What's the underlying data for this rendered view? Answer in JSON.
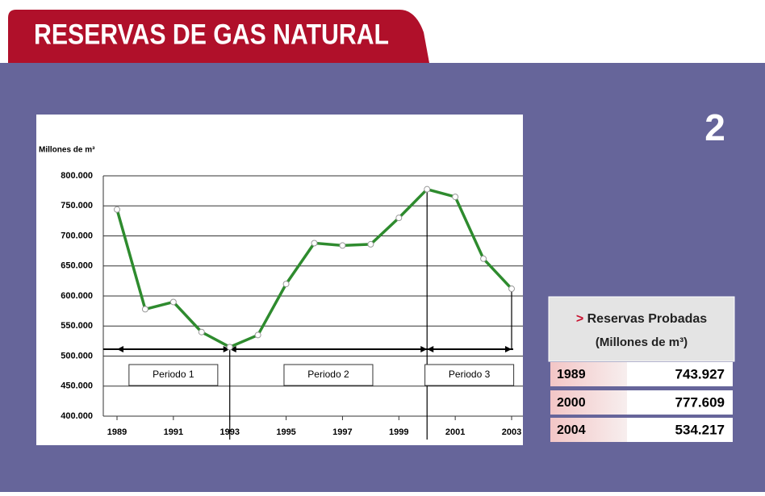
{
  "header": {
    "title": "RESERVAS DE GAS NATURAL"
  },
  "badge": "2",
  "chart_data": {
    "type": "line",
    "ylabel": "Millones de m³",
    "x": [
      1989,
      1990,
      1991,
      1992,
      1993,
      1994,
      1995,
      1996,
      1997,
      1998,
      1999,
      2000,
      2001,
      2002,
      2003
    ],
    "series": [
      {
        "name": "Reservas",
        "color": "#2e8b2e",
        "values": [
          743927,
          578000,
          590000,
          540000,
          515000,
          535000,
          620000,
          688000,
          684000,
          686000,
          730000,
          777609,
          765000,
          662000,
          612000
        ]
      }
    ],
    "xlim": [
      1989,
      2003
    ],
    "xticks": [
      1989,
      1991,
      1993,
      1995,
      1997,
      1999,
      2001,
      2003
    ],
    "ylim": [
      400000,
      800000
    ],
    "yticks": [
      {
        "value": 400000,
        "label": "400.000"
      },
      {
        "value": 450000,
        "label": "450.000"
      },
      {
        "value": 500000,
        "label": "500.000"
      },
      {
        "value": 550000,
        "label": "550.000"
      },
      {
        "value": 600000,
        "label": "600.000"
      },
      {
        "value": 650000,
        "label": "650.000"
      },
      {
        "value": 700000,
        "label": "700.000"
      },
      {
        "value": 750000,
        "label": "750.000"
      },
      {
        "value": 800000,
        "label": "800.000"
      }
    ],
    "grid": true,
    "periods": [
      {
        "label": "Periodo 1",
        "start": 1989,
        "end": 1993
      },
      {
        "label": "Periodo 2",
        "start": 1993,
        "end": 2000
      },
      {
        "label": "Periodo 3",
        "start": 2000,
        "end": 2003
      }
    ]
  },
  "table": {
    "marker": ">",
    "title": "Reservas Probadas",
    "subtitle": "(Millones de m³)",
    "rows": [
      [
        "1989",
        "743.927"
      ],
      [
        "2000",
        "777.609"
      ],
      [
        "2004",
        "534.217"
      ]
    ]
  }
}
